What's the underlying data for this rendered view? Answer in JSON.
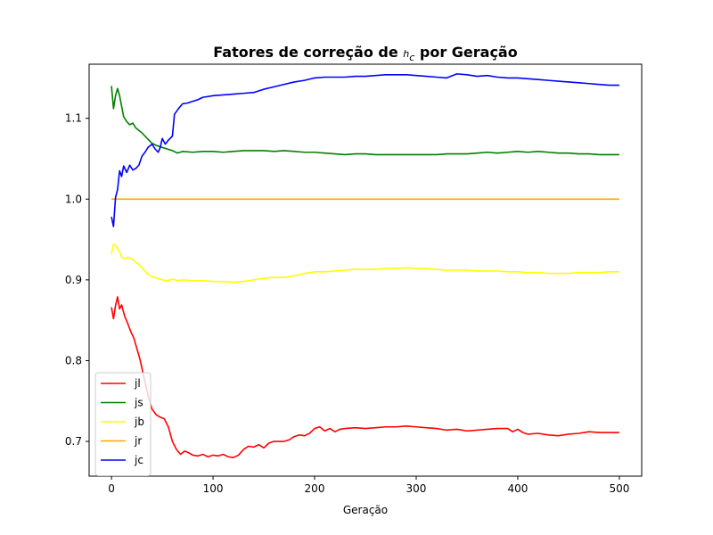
{
  "chart_data": {
    "type": "line",
    "title": "Fatores de correção de h_c por Geração",
    "title_parts": {
      "before": "Fatores de correção de ",
      "symbol": "h",
      "subscript": "c",
      "after": " por Geração"
    },
    "xlabel": "Geração",
    "ylabel": "",
    "xlim": [
      -22,
      522
    ],
    "ylim": [
      0.657,
      1.167
    ],
    "xticks": [
      0,
      100,
      200,
      300,
      400,
      500
    ],
    "yticks": [
      0.7,
      0.8,
      0.9,
      1.0,
      1.1
    ],
    "ytick_labels": [
      "0.7",
      "0.8",
      "0.9",
      "1.0",
      "1.1"
    ],
    "grid": false,
    "legend_position": "lower-left",
    "series": [
      {
        "name": "jl",
        "color": "#ff0000",
        "points": [
          [
            0,
            0.866
          ],
          [
            2,
            0.852
          ],
          [
            4,
            0.868
          ],
          [
            6,
            0.879
          ],
          [
            8,
            0.864
          ],
          [
            10,
            0.869
          ],
          [
            13,
            0.855
          ],
          [
            16,
            0.846
          ],
          [
            19,
            0.836
          ],
          [
            22,
            0.828
          ],
          [
            25,
            0.815
          ],
          [
            28,
            0.802
          ],
          [
            31,
            0.785
          ],
          [
            34,
            0.768
          ],
          [
            37,
            0.752
          ],
          [
            40,
            0.74
          ],
          [
            44,
            0.733
          ],
          [
            48,
            0.73
          ],
          [
            52,
            0.728
          ],
          [
            56,
            0.718
          ],
          [
            60,
            0.7
          ],
          [
            64,
            0.69
          ],
          [
            68,
            0.684
          ],
          [
            72,
            0.688
          ],
          [
            76,
            0.686
          ],
          [
            80,
            0.683
          ],
          [
            85,
            0.682
          ],
          [
            90,
            0.684
          ],
          [
            95,
            0.681
          ],
          [
            100,
            0.683
          ],
          [
            105,
            0.682
          ],
          [
            110,
            0.684
          ],
          [
            115,
            0.681
          ],
          [
            120,
            0.68
          ],
          [
            125,
            0.683
          ],
          [
            130,
            0.69
          ],
          [
            135,
            0.694
          ],
          [
            140,
            0.693
          ],
          [
            145,
            0.696
          ],
          [
            150,
            0.692
          ],
          [
            155,
            0.698
          ],
          [
            160,
            0.7
          ],
          [
            170,
            0.7
          ],
          [
            175,
            0.702
          ],
          [
            180,
            0.706
          ],
          [
            185,
            0.708
          ],
          [
            190,
            0.707
          ],
          [
            195,
            0.71
          ],
          [
            200,
            0.716
          ],
          [
            205,
            0.718
          ],
          [
            210,
            0.713
          ],
          [
            215,
            0.716
          ],
          [
            220,
            0.712
          ],
          [
            225,
            0.715
          ],
          [
            230,
            0.716
          ],
          [
            240,
            0.717
          ],
          [
            250,
            0.716
          ],
          [
            260,
            0.717
          ],
          [
            270,
            0.718
          ],
          [
            280,
            0.718
          ],
          [
            290,
            0.719
          ],
          [
            300,
            0.718
          ],
          [
            310,
            0.717
          ],
          [
            320,
            0.716
          ],
          [
            330,
            0.714
          ],
          [
            340,
            0.715
          ],
          [
            350,
            0.713
          ],
          [
            360,
            0.714
          ],
          [
            370,
            0.715
          ],
          [
            380,
            0.716
          ],
          [
            390,
            0.716
          ],
          [
            395,
            0.712
          ],
          [
            400,
            0.715
          ],
          [
            405,
            0.711
          ],
          [
            410,
            0.709
          ],
          [
            420,
            0.71
          ],
          [
            430,
            0.708
          ],
          [
            440,
            0.707
          ],
          [
            450,
            0.709
          ],
          [
            460,
            0.71
          ],
          [
            470,
            0.712
          ],
          [
            480,
            0.711
          ],
          [
            490,
            0.711
          ],
          [
            500,
            0.711
          ]
        ]
      },
      {
        "name": "js",
        "color": "#008000",
        "points": [
          [
            0,
            1.14
          ],
          [
            2,
            1.112
          ],
          [
            4,
            1.128
          ],
          [
            6,
            1.137
          ],
          [
            8,
            1.128
          ],
          [
            10,
            1.115
          ],
          [
            12,
            1.102
          ],
          [
            15,
            1.096
          ],
          [
            18,
            1.092
          ],
          [
            21,
            1.094
          ],
          [
            24,
            1.088
          ],
          [
            27,
            1.085
          ],
          [
            30,
            1.082
          ],
          [
            33,
            1.078
          ],
          [
            36,
            1.074
          ],
          [
            40,
            1.069
          ],
          [
            45,
            1.066
          ],
          [
            50,
            1.064
          ],
          [
            55,
            1.062
          ],
          [
            60,
            1.06
          ],
          [
            65,
            1.057
          ],
          [
            70,
            1.059
          ],
          [
            80,
            1.058
          ],
          [
            90,
            1.059
          ],
          [
            100,
            1.059
          ],
          [
            110,
            1.058
          ],
          [
            120,
            1.059
          ],
          [
            130,
            1.06
          ],
          [
            140,
            1.06
          ],
          [
            150,
            1.06
          ],
          [
            160,
            1.059
          ],
          [
            170,
            1.06
          ],
          [
            180,
            1.059
          ],
          [
            190,
            1.058
          ],
          [
            200,
            1.058
          ],
          [
            210,
            1.057
          ],
          [
            220,
            1.056
          ],
          [
            230,
            1.055
          ],
          [
            240,
            1.056
          ],
          [
            250,
            1.056
          ],
          [
            260,
            1.055
          ],
          [
            270,
            1.055
          ],
          [
            280,
            1.055
          ],
          [
            290,
            1.055
          ],
          [
            300,
            1.055
          ],
          [
            310,
            1.055
          ],
          [
            320,
            1.055
          ],
          [
            330,
            1.056
          ],
          [
            340,
            1.056
          ],
          [
            350,
            1.056
          ],
          [
            360,
            1.057
          ],
          [
            370,
            1.058
          ],
          [
            380,
            1.057
          ],
          [
            390,
            1.058
          ],
          [
            400,
            1.059
          ],
          [
            410,
            1.058
          ],
          [
            420,
            1.059
          ],
          [
            430,
            1.058
          ],
          [
            440,
            1.057
          ],
          [
            450,
            1.057
          ],
          [
            460,
            1.056
          ],
          [
            470,
            1.056
          ],
          [
            480,
            1.055
          ],
          [
            490,
            1.055
          ],
          [
            500,
            1.055
          ]
        ]
      },
      {
        "name": "jb",
        "color": "#ffff00",
        "points": [
          [
            0,
            0.932
          ],
          [
            2,
            0.944
          ],
          [
            4,
            0.943
          ],
          [
            6,
            0.938
          ],
          [
            8,
            0.935
          ],
          [
            10,
            0.928
          ],
          [
            13,
            0.926
          ],
          [
            16,
            0.928
          ],
          [
            20,
            0.926
          ],
          [
            24,
            0.922
          ],
          [
            28,
            0.918
          ],
          [
            32,
            0.912
          ],
          [
            36,
            0.907
          ],
          [
            40,
            0.904
          ],
          [
            45,
            0.902
          ],
          [
            50,
            0.9
          ],
          [
            55,
            0.899
          ],
          [
            60,
            0.901
          ],
          [
            65,
            0.899
          ],
          [
            70,
            0.9
          ],
          [
            80,
            0.899
          ],
          [
            90,
            0.899
          ],
          [
            100,
            0.898
          ],
          [
            110,
            0.898
          ],
          [
            120,
            0.897
          ],
          [
            130,
            0.898
          ],
          [
            140,
            0.9
          ],
          [
            150,
            0.902
          ],
          [
            160,
            0.903
          ],
          [
            170,
            0.903
          ],
          [
            180,
            0.905
          ],
          [
            190,
            0.908
          ],
          [
            200,
            0.91
          ],
          [
            210,
            0.91
          ],
          [
            220,
            0.911
          ],
          [
            230,
            0.912
          ],
          [
            240,
            0.913
          ],
          [
            250,
            0.913
          ],
          [
            260,
            0.913
          ],
          [
            270,
            0.914
          ],
          [
            280,
            0.914
          ],
          [
            290,
            0.915
          ],
          [
            300,
            0.914
          ],
          [
            310,
            0.914
          ],
          [
            320,
            0.913
          ],
          [
            330,
            0.912
          ],
          [
            340,
            0.912
          ],
          [
            350,
            0.912
          ],
          [
            360,
            0.911
          ],
          [
            370,
            0.911
          ],
          [
            380,
            0.911
          ],
          [
            390,
            0.91
          ],
          [
            400,
            0.91
          ],
          [
            410,
            0.909
          ],
          [
            420,
            0.909
          ],
          [
            430,
            0.908
          ],
          [
            440,
            0.908
          ],
          [
            450,
            0.908
          ],
          [
            460,
            0.909
          ],
          [
            470,
            0.909
          ],
          [
            480,
            0.909
          ],
          [
            490,
            0.91
          ],
          [
            500,
            0.91
          ]
        ]
      },
      {
        "name": "jr",
        "color": "#ffa500",
        "points": [
          [
            0,
            1.0
          ],
          [
            500,
            1.0
          ]
        ]
      },
      {
        "name": "jc",
        "color": "#0000ff",
        "points": [
          [
            0,
            0.978
          ],
          [
            2,
            0.966
          ],
          [
            4,
            1.002
          ],
          [
            6,
            1.012
          ],
          [
            8,
            1.035
          ],
          [
            10,
            1.028
          ],
          [
            12,
            1.041
          ],
          [
            15,
            1.033
          ],
          [
            18,
            1.042
          ],
          [
            21,
            1.036
          ],
          [
            24,
            1.038
          ],
          [
            27,
            1.042
          ],
          [
            30,
            1.053
          ],
          [
            33,
            1.058
          ],
          [
            36,
            1.064
          ],
          [
            40,
            1.068
          ],
          [
            43,
            1.062
          ],
          [
            46,
            1.058
          ],
          [
            48,
            1.064
          ],
          [
            50,
            1.075
          ],
          [
            53,
            1.068
          ],
          [
            56,
            1.073
          ],
          [
            60,
            1.078
          ],
          [
            62,
            1.105
          ],
          [
            66,
            1.112
          ],
          [
            70,
            1.118
          ],
          [
            75,
            1.119
          ],
          [
            80,
            1.121
          ],
          [
            85,
            1.123
          ],
          [
            90,
            1.126
          ],
          [
            95,
            1.127
          ],
          [
            100,
            1.128
          ],
          [
            110,
            1.129
          ],
          [
            120,
            1.13
          ],
          [
            130,
            1.131
          ],
          [
            140,
            1.132
          ],
          [
            150,
            1.136
          ],
          [
            160,
            1.139
          ],
          [
            170,
            1.142
          ],
          [
            180,
            1.145
          ],
          [
            190,
            1.147
          ],
          [
            200,
            1.15
          ],
          [
            210,
            1.151
          ],
          [
            220,
            1.151
          ],
          [
            230,
            1.151
          ],
          [
            240,
            1.152
          ],
          [
            250,
            1.152
          ],
          [
            260,
            1.153
          ],
          [
            270,
            1.154
          ],
          [
            280,
            1.154
          ],
          [
            290,
            1.154
          ],
          [
            300,
            1.153
          ],
          [
            310,
            1.152
          ],
          [
            320,
            1.151
          ],
          [
            330,
            1.15
          ],
          [
            340,
            1.155
          ],
          [
            350,
            1.154
          ],
          [
            360,
            1.152
          ],
          [
            370,
            1.153
          ],
          [
            380,
            1.151
          ],
          [
            390,
            1.15
          ],
          [
            400,
            1.15
          ],
          [
            410,
            1.149
          ],
          [
            420,
            1.148
          ],
          [
            430,
            1.147
          ],
          [
            440,
            1.146
          ],
          [
            450,
            1.145
          ],
          [
            460,
            1.144
          ],
          [
            470,
            1.143
          ],
          [
            480,
            1.142
          ],
          [
            490,
            1.141
          ],
          [
            500,
            1.141
          ]
        ]
      }
    ]
  }
}
